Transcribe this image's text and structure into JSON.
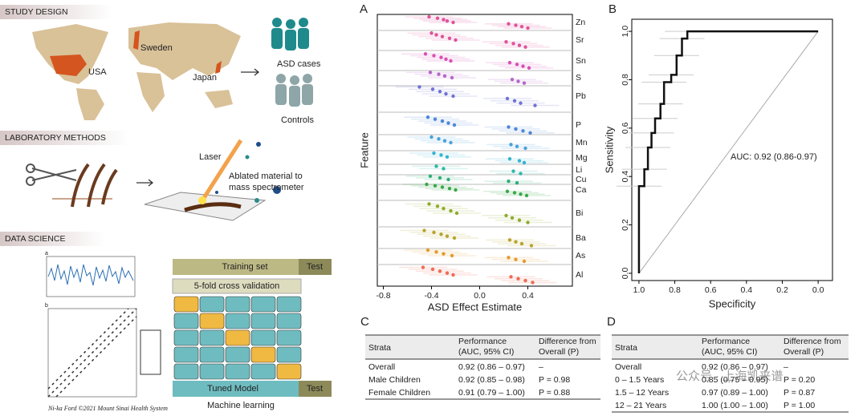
{
  "study_design": {
    "header": "STUDY DESIGN",
    "countries": [
      "USA",
      "Sweden",
      "Japan"
    ],
    "groups": [
      "ASD cases",
      "Controls"
    ]
  },
  "laboratory_methods": {
    "header": "LABORATORY METHODS",
    "laser": "Laser",
    "ablated": [
      "Ablated material to",
      "mass spectrometer"
    ]
  },
  "data_science": {
    "header": "DATA SCIENCE",
    "plot_labels": [
      "a",
      "b"
    ],
    "training_set": "Training set",
    "test": "Test",
    "cross_validation": "5-fold cross validation",
    "tuned_model": "Tuned Model",
    "test_2": "Test",
    "caption": "Machine learning",
    "credit": "Ni-ka Ford ©2021 Mount Sinai Health System"
  },
  "chart_data": [
    {
      "type": "dot",
      "panel": "A",
      "x_label": "ASD Effect Estimate",
      "y_label": "Feature",
      "xlim": [
        -0.85,
        0.77
      ],
      "xticks": [
        -0.8,
        -0.4,
        {
          "value": 0,
          "label": "0.0"
        },
        0.4
      ],
      "series": [
        {
          "name": "Zn",
          "color": "#e0529a",
          "values": [
            -0.42,
            -0.35,
            -0.3,
            -0.27,
            -0.22,
            0.24,
            0.3,
            0.35,
            0.4
          ]
        },
        {
          "name": "Sr",
          "color": "#e0529a",
          "values": [
            -0.4,
            -0.36,
            -0.31,
            -0.25,
            -0.2,
            0.22,
            0.28,
            0.33,
            0.38
          ]
        },
        {
          "name": "Sn",
          "color": "#d94fb5",
          "values": [
            -0.45,
            -0.38,
            -0.32,
            -0.28,
            -0.24,
            0.25,
            0.31,
            0.36,
            0.41
          ]
        },
        {
          "name": "S",
          "color": "#b567c9",
          "values": [
            -0.41,
            -0.34,
            -0.29,
            -0.23,
            0.27,
            0.32,
            0.37
          ]
        },
        {
          "name": "Pb",
          "color": "#6f73d4",
          "values": [
            -0.5,
            -0.39,
            -0.33,
            -0.28,
            -0.22,
            0.23,
            0.29,
            0.34,
            0.46
          ]
        },
        {
          "name": "P",
          "color": "#4f86d8",
          "values": [
            -0.43,
            -0.37,
            -0.31,
            -0.26,
            -0.21,
            0.24,
            0.3,
            0.36,
            0.42
          ]
        },
        {
          "name": "Mn",
          "color": "#4aa1dc",
          "values": [
            -0.4,
            -0.34,
            -0.29,
            -0.24,
            0.26,
            0.31,
            0.38
          ]
        },
        {
          "name": "Mg",
          "color": "#36b4d0",
          "values": [
            -0.38,
            -0.32,
            -0.27,
            0.25,
            0.33,
            0.37
          ]
        },
        {
          "name": "Li",
          "color": "#2fb7a8",
          "values": [
            -0.36,
            -0.3,
            0.28,
            0.34
          ]
        },
        {
          "name": "Cu",
          "color": "#2fae77",
          "values": [
            -0.41,
            -0.33,
            -0.26,
            0.24,
            0.31
          ]
        },
        {
          "name": "Ca",
          "color": "#3aa84a",
          "values": [
            -0.44,
            -0.37,
            -0.31,
            -0.25,
            -0.2,
            0.23,
            0.29,
            0.34,
            0.39
          ]
        },
        {
          "name": "Bi",
          "color": "#8fab2d",
          "values": [
            -0.42,
            -0.35,
            -0.3,
            -0.24,
            -0.19,
            0.22,
            0.27,
            0.33,
            0.4
          ]
        },
        {
          "name": "Ba",
          "color": "#b9a42c",
          "values": [
            -0.46,
            -0.38,
            -0.32,
            -0.27,
            -0.21,
            0.25,
            0.3,
            0.35,
            0.43
          ]
        },
        {
          "name": "As",
          "color": "#e39a2e",
          "values": [
            -0.43,
            -0.36,
            -0.3,
            -0.23,
            0.24,
            0.3,
            0.37
          ]
        },
        {
          "name": "Al",
          "color": "#ef6b55",
          "values": [
            -0.47,
            -0.39,
            -0.33,
            -0.27,
            -0.22,
            0.26,
            0.32,
            0.38,
            0.44
          ]
        }
      ]
    },
    {
      "type": "roc",
      "panel": "B",
      "x_label": "Specificity",
      "y_label": "Sensitivity",
      "annotation": "AUC: 0.92 (0.86-0.97)",
      "xlim": [
        1.04,
        -0.08
      ],
      "ylim": [
        -0.03,
        1.05
      ],
      "xticks": [
        {
          "value": 1,
          "label": "1.0"
        },
        0.8,
        0.6,
        0.4,
        0.2,
        {
          "value": 0,
          "label": "0.0"
        }
      ],
      "yticks": [
        {
          "value": 0,
          "label": "0.0"
        },
        0.2,
        0.4,
        0.6,
        0.8,
        {
          "value": 1,
          "label": "1.0"
        }
      ],
      "x": [
        1,
        1,
        0.97,
        0.97,
        0.95,
        0.95,
        0.93,
        0.93,
        0.91,
        0.91,
        0.88,
        0.88,
        0.86,
        0.86,
        0.82,
        0.82,
        0.79,
        0.79,
        0.76,
        0.76,
        0.73,
        0.73,
        0
      ],
      "values": [
        0,
        0.36,
        0.36,
        0.43,
        0.43,
        0.52,
        0.52,
        0.58,
        0.58,
        0.64,
        0.64,
        0.7,
        0.7,
        0.79,
        0.79,
        0.82,
        0.82,
        0.9,
        0.9,
        0.97,
        0.97,
        1,
        1
      ]
    }
  ],
  "tables": [
    {
      "panel": "C",
      "header": [
        [
          "Strata"
        ],
        [
          "Performance",
          "(AUC, 95% CI)"
        ],
        [
          "Difference from",
          "Overall (P)"
        ]
      ],
      "rows": [
        [
          "Overall",
          "0.92 (0.86 – 0.97)",
          "–"
        ],
        [
          "Male Children",
          "0.92 (0.85 – 0.98)",
          "P = 0.98"
        ],
        [
          "Female Children",
          "0.91 (0.79 – 1.00)",
          "P = 0.88"
        ]
      ]
    },
    {
      "panel": "D",
      "header": [
        [
          "Strata"
        ],
        [
          "Performance",
          "(AUC, 95% CI)"
        ],
        [
          "Difference from",
          "Overall (P)"
        ]
      ],
      "rows": [
        [
          "Overall",
          "0.92 (0.86 – 0.97)",
          "–"
        ],
        [
          "0 – 1.5 Years",
          "0.85 (0.75 – 0.95)",
          "P = 0.20"
        ],
        [
          "1.5 – 12 Years",
          "0.97 (0.89 – 1.00)",
          "P = 0.87"
        ],
        [
          "12 – 21 Years",
          "1.00 (1.00 – 1.00)",
          "P = 1.00"
        ]
      ]
    }
  ],
  "watermark": "公众号 · 上海凯来谱"
}
